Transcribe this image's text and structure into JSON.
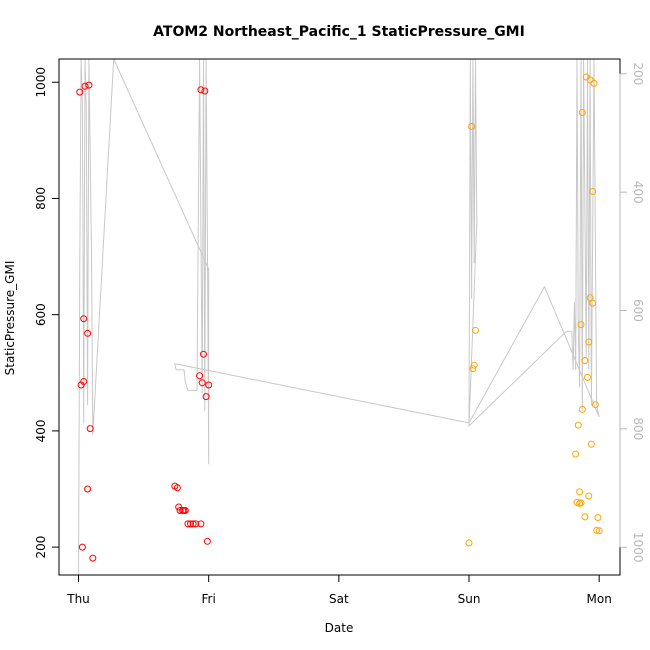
{
  "chart_data": {
    "type": "scatter",
    "title": "ATOM2 Northeast_Pacific_1 StaticPressure_GMI",
    "xlabel": "Date",
    "ylabel": "StaticPressure_GMI",
    "x_unit": "days (Thu 00:00 = 0)",
    "x_ticks": [
      {
        "value": 0,
        "label": "Thu"
      },
      {
        "value": 1,
        "label": "Fri"
      },
      {
        "value": 2,
        "label": "Sat"
      },
      {
        "value": 3,
        "label": "Sun"
      },
      {
        "value": 4,
        "label": "Mon"
      }
    ],
    "xlim": [
      -0.15,
      4.16
    ],
    "ylim": [
      152,
      1040
    ],
    "y_ticks": [
      200,
      400,
      600,
      800,
      1000
    ],
    "y2_ticks": [
      200,
      400,
      600,
      800,
      1000
    ],
    "y2lim": [
      1047,
      175
    ],
    "grid": false,
    "colors": {
      "series_red": "#ff0000",
      "series_orange": "#ffa500",
      "line": "#c8c8c8"
    },
    "series": [
      {
        "color": "#ff0000",
        "points": [
          [
            0.01,
            983
          ],
          [
            0.05,
            993
          ],
          [
            0.08,
            995
          ],
          [
            0.04,
            593
          ],
          [
            0.07,
            568
          ],
          [
            0.02,
            479
          ],
          [
            0.04,
            485
          ],
          [
            0.09,
            404
          ],
          [
            0.07,
            300
          ],
          [
            0.03,
            200
          ],
          [
            0.11,
            181
          ],
          [
            0.74,
            305
          ],
          [
            0.76,
            302
          ],
          [
            0.77,
            269
          ],
          [
            0.78,
            263
          ],
          [
            0.8,
            263
          ],
          [
            0.81,
            263
          ],
          [
            0.82,
            263
          ],
          [
            0.84,
            240
          ],
          [
            0.86,
            240
          ],
          [
            0.88,
            240
          ],
          [
            0.9,
            240
          ],
          [
            0.94,
            240
          ],
          [
            0.99,
            210
          ],
          [
            0.94,
            987
          ],
          [
            0.97,
            985
          ],
          [
            0.93,
            495
          ],
          [
            0.95,
            483
          ],
          [
            0.96,
            532
          ],
          [
            0.98,
            459
          ],
          [
            1.0,
            479
          ]
        ]
      },
      {
        "color": "#ffa500",
        "points": [
          [
            3.02,
            924
          ],
          [
            3.05,
            573
          ],
          [
            3.04,
            513
          ],
          [
            3.03,
            507
          ],
          [
            3.0,
            207
          ],
          [
            3.87,
            948
          ],
          [
            3.9,
            1009
          ],
          [
            3.93,
            1004
          ],
          [
            3.96,
            998
          ],
          [
            3.95,
            812
          ],
          [
            3.93,
            629
          ],
          [
            3.95,
            620
          ],
          [
            3.86,
            583
          ],
          [
            3.92,
            553
          ],
          [
            3.89,
            521
          ],
          [
            3.91,
            492
          ],
          [
            3.97,
            445
          ],
          [
            3.87,
            437
          ],
          [
            3.84,
            410
          ],
          [
            3.94,
            377
          ],
          [
            3.82,
            360
          ],
          [
            3.85,
            295
          ],
          [
            3.92,
            288
          ],
          [
            3.83,
            277
          ],
          [
            3.85,
            275
          ],
          [
            3.86,
            276
          ],
          [
            3.89,
            252
          ],
          [
            3.99,
            251
          ],
          [
            3.98,
            229
          ],
          [
            4.0,
            228
          ]
        ]
      }
    ],
    "line_series": {
      "color": "#c8c8c8",
      "axis": "right",
      "points": [
        [
          0.0,
          1047
        ],
        [
          0.01,
          520
        ],
        [
          0.02,
          175
        ],
        [
          0.03,
          250
        ],
        [
          0.04,
          790
        ],
        [
          0.05,
          175
        ],
        [
          0.06,
          260
        ],
        [
          0.07,
          760
        ],
        [
          0.08,
          175
        ],
        [
          0.1,
          500
        ],
        [
          0.11,
          810
        ],
        [
          0.27,
          175
        ],
        [
          1.0,
          530
        ],
        [
          1.0,
          860
        ],
        [
          0.99,
          480
        ],
        [
          0.98,
          175
        ],
        [
          0.97,
          770
        ],
        [
          0.96,
          175
        ],
        [
          0.95,
          740
        ],
        [
          0.93,
          175
        ],
        [
          0.91,
          735
        ],
        [
          0.84,
          735
        ],
        [
          0.82,
          720
        ],
        [
          0.81,
          700
        ],
        [
          0.75,
          700
        ],
        [
          0.74,
          690
        ],
        [
          3.0,
          790
        ],
        [
          3.01,
          175
        ],
        [
          3.02,
          580
        ],
        [
          3.03,
          175
        ],
        [
          3.04,
          520
        ],
        [
          3.05,
          175
        ],
        [
          3.06,
          450
        ],
        [
          3.0,
          795
        ],
        [
          3.75,
          635
        ],
        [
          3.79,
          635
        ],
        [
          3.8,
          700
        ],
        [
          3.81,
          585
        ],
        [
          3.82,
          700
        ],
        [
          3.83,
          175
        ],
        [
          3.84,
          630
        ],
        [
          3.85,
          730
        ],
        [
          3.86,
          175
        ],
        [
          3.87,
          770
        ],
        [
          3.88,
          175
        ],
        [
          3.9,
          680
        ],
        [
          3.91,
          175
        ],
        [
          3.92,
          700
        ],
        [
          3.93,
          175
        ],
        [
          3.94,
          760
        ],
        [
          3.96,
          175
        ],
        [
          3.98,
          760
        ],
        [
          4.0,
          780
        ],
        [
          3.58,
          560
        ],
        [
          3.0,
          790
        ]
      ]
    }
  }
}
